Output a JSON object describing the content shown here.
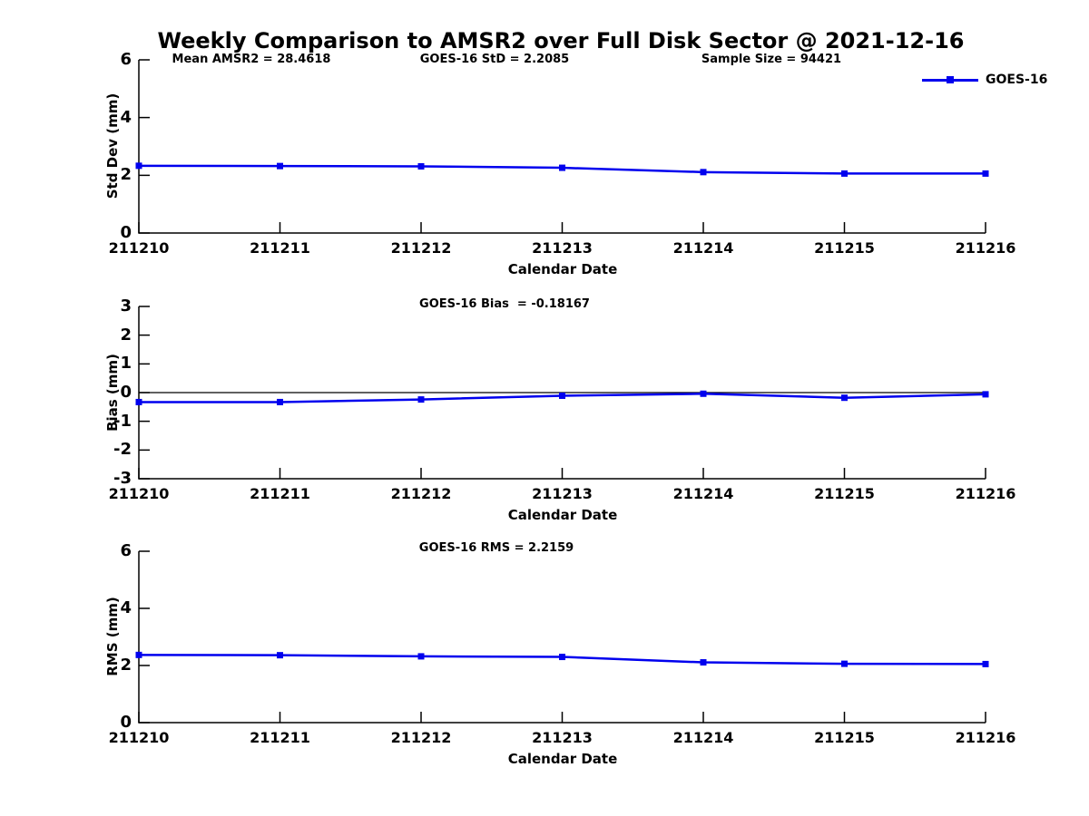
{
  "title": "Weekly Comparison to AMSR2 over Full Disk Sector @ 2021-12-16",
  "legend": {
    "label": "GOES-16"
  },
  "colors": {
    "series": "#0000ee",
    "axis": "#000000",
    "zero_line": "#000000",
    "text": "#000000"
  },
  "chart_data": [
    {
      "type": "line",
      "name": "std-dev",
      "title": "",
      "categories": [
        "211210",
        "211211",
        "211212",
        "211213",
        "211214",
        "211215",
        "211216"
      ],
      "series": [
        {
          "name": "GOES-16",
          "values": [
            2.33,
            2.32,
            2.31,
            2.26,
            2.11,
            2.06,
            2.06
          ],
          "color": "#0000ee",
          "marker": "square"
        }
      ],
      "xlabel": "Calendar Date",
      "ylabel": "Std Dev (mm)",
      "ylim": [
        0,
        6
      ],
      "yticks": [
        0,
        2,
        4,
        6
      ],
      "grid": false,
      "legend_position": "top-right",
      "annotations": [
        "Mean AMSR2 = 28.4618",
        "GOES-16 StD = 2.2085",
        "Sample Size = 94421"
      ]
    },
    {
      "type": "line",
      "name": "bias",
      "title": "",
      "categories": [
        "211210",
        "211211",
        "211212",
        "211213",
        "211214",
        "211215",
        "211216"
      ],
      "series": [
        {
          "name": "GOES-16",
          "values": [
            -0.33,
            -0.33,
            -0.24,
            -0.11,
            -0.04,
            -0.18,
            -0.06
          ],
          "color": "#0000ee",
          "marker": "square"
        }
      ],
      "xlabel": "Calendar Date",
      "ylabel": "Bias (mm)",
      "ylim": [
        -3,
        3
      ],
      "yticks": [
        3,
        2,
        1,
        0,
        -1,
        -2,
        -3
      ],
      "grid": false,
      "zero_line": true,
      "annotations": [
        "GOES-16 Bias  = -0.18167"
      ]
    },
    {
      "type": "line",
      "name": "rms",
      "title": "",
      "categories": [
        "211210",
        "211211",
        "211212",
        "211213",
        "211214",
        "211215",
        "211216"
      ],
      "series": [
        {
          "name": "GOES-16",
          "values": [
            2.37,
            2.36,
            2.32,
            2.3,
            2.11,
            2.06,
            2.05
          ],
          "color": "#0000ee",
          "marker": "square"
        }
      ],
      "xlabel": "Calendar Date",
      "ylabel": "RMS (mm)",
      "ylim": [
        0,
        6
      ],
      "yticks": [
        0,
        2,
        4,
        6
      ],
      "grid": false,
      "annotations": [
        "GOES-16 RMS = 2.2159"
      ]
    }
  ]
}
